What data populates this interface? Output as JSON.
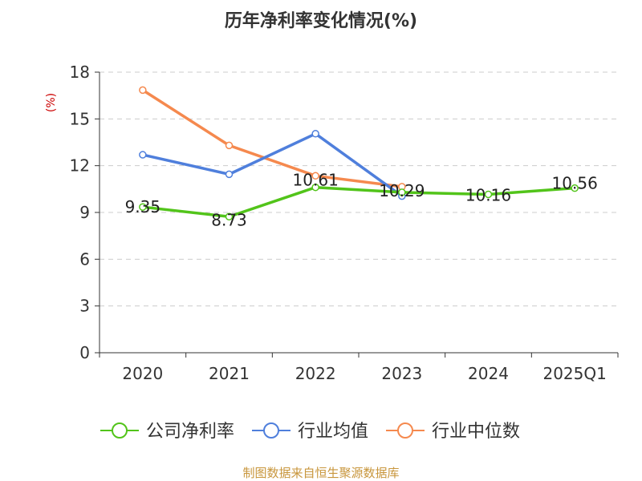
{
  "chart_data": {
    "type": "line",
    "title": "历年净利率变化情况(%)",
    "xlabel": "",
    "ylabel": "(%)",
    "categories": [
      "2020",
      "2021",
      "2022",
      "2023",
      "2024",
      "2025Q1"
    ],
    "ylim": [
      0,
      18
    ],
    "yticks": [
      0,
      3,
      6,
      9,
      12,
      15,
      18
    ],
    "grid": true,
    "legend_position": "bottom",
    "series": [
      {
        "name": "公司净利率",
        "color": "#52c41a",
        "values": [
          9.35,
          8.73,
          10.61,
          10.29,
          10.16,
          10.56
        ],
        "labels": [
          "9.35",
          "8.73",
          "10.61",
          "10.29",
          "10.16",
          "10.56"
        ]
      },
      {
        "name": "行业均值",
        "color": "#4f7fdc",
        "values": [
          12.7,
          11.45,
          14.05,
          10.05,
          null,
          null
        ]
      },
      {
        "name": "行业中位数",
        "color": "#f5894e",
        "values": [
          16.85,
          13.3,
          11.35,
          10.65,
          null,
          null
        ]
      }
    ],
    "source": "制图数据来自恒生聚源数据库"
  }
}
